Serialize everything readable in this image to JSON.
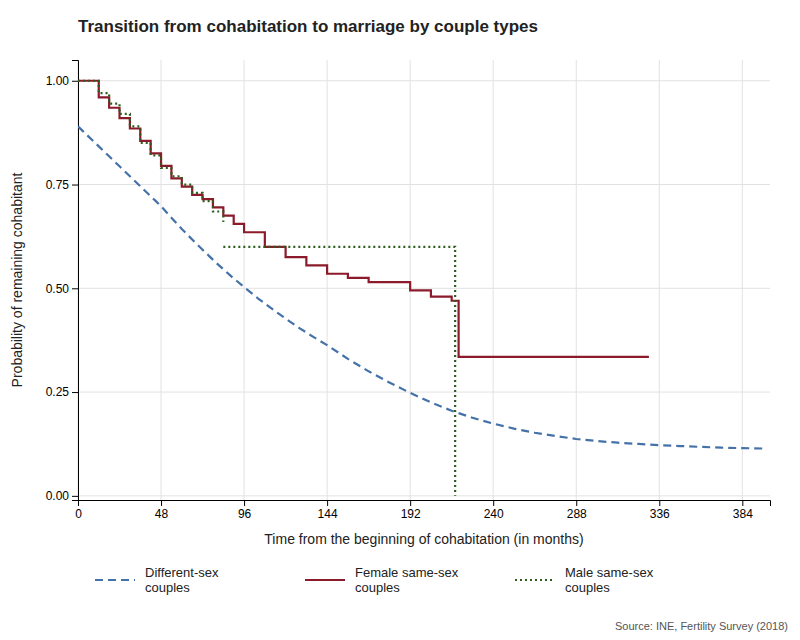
{
  "chart_data": {
    "type": "line",
    "title": "Transition from cohabitation to marriage by couple types",
    "xlabel": "Time from the beginning of cohabitation (in months)",
    "ylabel": "Probability of remaining cohabitant",
    "source": "Source: INE, Fertility Survey (2018)",
    "xlim": [
      0,
      400
    ],
    "ylim": [
      -0.01,
      1.05
    ],
    "xticks": [
      0,
      48,
      96,
      144,
      192,
      240,
      288,
      336,
      384
    ],
    "yticks": [
      {
        "value": 0.0,
        "label": "0.00"
      },
      0.25,
      {
        "value": 0.5,
        "label": "0.50"
      },
      0.75,
      {
        "value": 1.0,
        "label": "1.00"
      }
    ],
    "grid": true,
    "legend": "bottom",
    "series": [
      {
        "name": "Different-sex\ncouples",
        "color": "#4472a8",
        "type": "line",
        "line_style": "dashed",
        "x": [
          0,
          3,
          6,
          9,
          12,
          15,
          18,
          21,
          24,
          27,
          30,
          33,
          36,
          39,
          42,
          45,
          48,
          52,
          56,
          60,
          64,
          68,
          72,
          76,
          80,
          84,
          88,
          92,
          96,
          104,
          112,
          120,
          128,
          136,
          144,
          156,
          168,
          180,
          192,
          204,
          216,
          228,
          240,
          252,
          264,
          276,
          288,
          300,
          312,
          324,
          336,
          348,
          360,
          372,
          384,
          396
        ],
        "values": [
          0.89,
          0.878,
          0.866,
          0.854,
          0.842,
          0.83,
          0.818,
          0.806,
          0.794,
          0.782,
          0.77,
          0.758,
          0.746,
          0.734,
          0.722,
          0.71,
          0.698,
          0.679,
          0.661,
          0.643,
          0.626,
          0.609,
          0.593,
          0.577,
          0.561,
          0.546,
          0.531,
          0.517,
          0.503,
          0.476,
          0.451,
          0.427,
          0.404,
          0.383,
          0.363,
          0.33,
          0.3,
          0.273,
          0.248,
          0.225,
          0.205,
          0.188,
          0.174,
          0.162,
          0.152,
          0.144,
          0.137,
          0.132,
          0.128,
          0.125,
          0.122,
          0.12,
          0.118,
          0.116,
          0.115,
          0.114
        ]
      },
      {
        "name": "Female same-sex\ncouples",
        "color": "#8B1A2B",
        "type": "step",
        "line_style": "solid",
        "x": [
          0,
          12,
          18,
          24,
          30,
          36,
          42,
          48,
          54,
          60,
          66,
          72,
          78,
          84,
          90,
          96,
          108,
          120,
          132,
          144,
          156,
          168,
          180,
          192,
          204,
          216,
          220,
          330
        ],
        "values": [
          1.0,
          0.96,
          0.935,
          0.91,
          0.885,
          0.855,
          0.825,
          0.795,
          0.765,
          0.745,
          0.725,
          0.715,
          0.695,
          0.675,
          0.655,
          0.635,
          0.6,
          0.575,
          0.555,
          0.535,
          0.525,
          0.515,
          0.515,
          0.495,
          0.48,
          0.47,
          0.335,
          0.335
        ]
      },
      {
        "name": "Male same-sex\ncouples",
        "color": "#2E5E1E",
        "type": "step",
        "line_style": "dotted",
        "x": [
          0,
          12,
          18,
          24,
          30,
          36,
          42,
          48,
          54,
          60,
          66,
          72,
          78,
          84,
          null,
          84,
          218,
          218
        ],
        "values": [
          1.0,
          0.97,
          0.945,
          0.92,
          0.89,
          0.85,
          0.82,
          0.79,
          0.77,
          0.75,
          0.73,
          0.71,
          0.685,
          0.66,
          null,
          0.6,
          0.6,
          0.0
        ]
      }
    ]
  }
}
